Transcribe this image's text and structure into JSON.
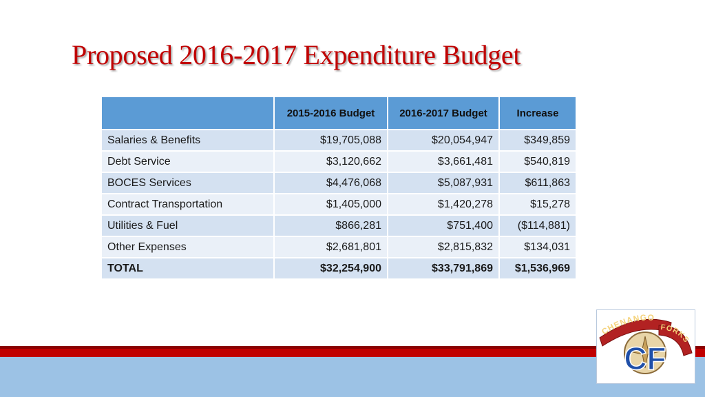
{
  "slide": {
    "title": "Proposed 2016-2017 Expenditure Budget"
  },
  "table": {
    "headers": [
      "",
      "2015-2016 Budget",
      "2016-2017 Budget",
      "Increase"
    ],
    "rows": [
      {
        "label": "Salaries & Benefits",
        "b2015": "$19,705,088",
        "b2016": "$20,054,947",
        "increase": "$349,859"
      },
      {
        "label": "Debt Service",
        "b2015": "$3,120,662",
        "b2016": "$3,661,481",
        "increase": "$540,819"
      },
      {
        "label": "BOCES Services",
        "b2015": "$4,476,068",
        "b2016": "$5,087,931",
        "increase": "$611,863"
      },
      {
        "label": "Contract Transportation",
        "b2015": "$1,405,000",
        "b2016": "$1,420,278",
        "increase": "$15,278"
      },
      {
        "label": "Utilities & Fuel",
        "b2015": "$866,281",
        "b2016": "$751,400",
        "increase": "($114,881)"
      },
      {
        "label": "Other Expenses",
        "b2015": "$2,681,801",
        "b2016": "$2,815,832",
        "increase": "$134,031"
      }
    ],
    "total": {
      "label": "TOTAL",
      "b2015": "$32,254,900",
      "b2016": "$33,791,869",
      "increase": "$1,536,969"
    }
  },
  "logo": {
    "top_text": "CHENANGO",
    "side_text": "FORKS",
    "monogram": "CF"
  },
  "colors": {
    "title": "#c00000",
    "header_fill": "#5b9bd5",
    "row_odd": "#d4e1f1",
    "row_even": "#eaf0f8",
    "footer_red": "#c00000",
    "footer_blue": "#9cc2e5"
  }
}
